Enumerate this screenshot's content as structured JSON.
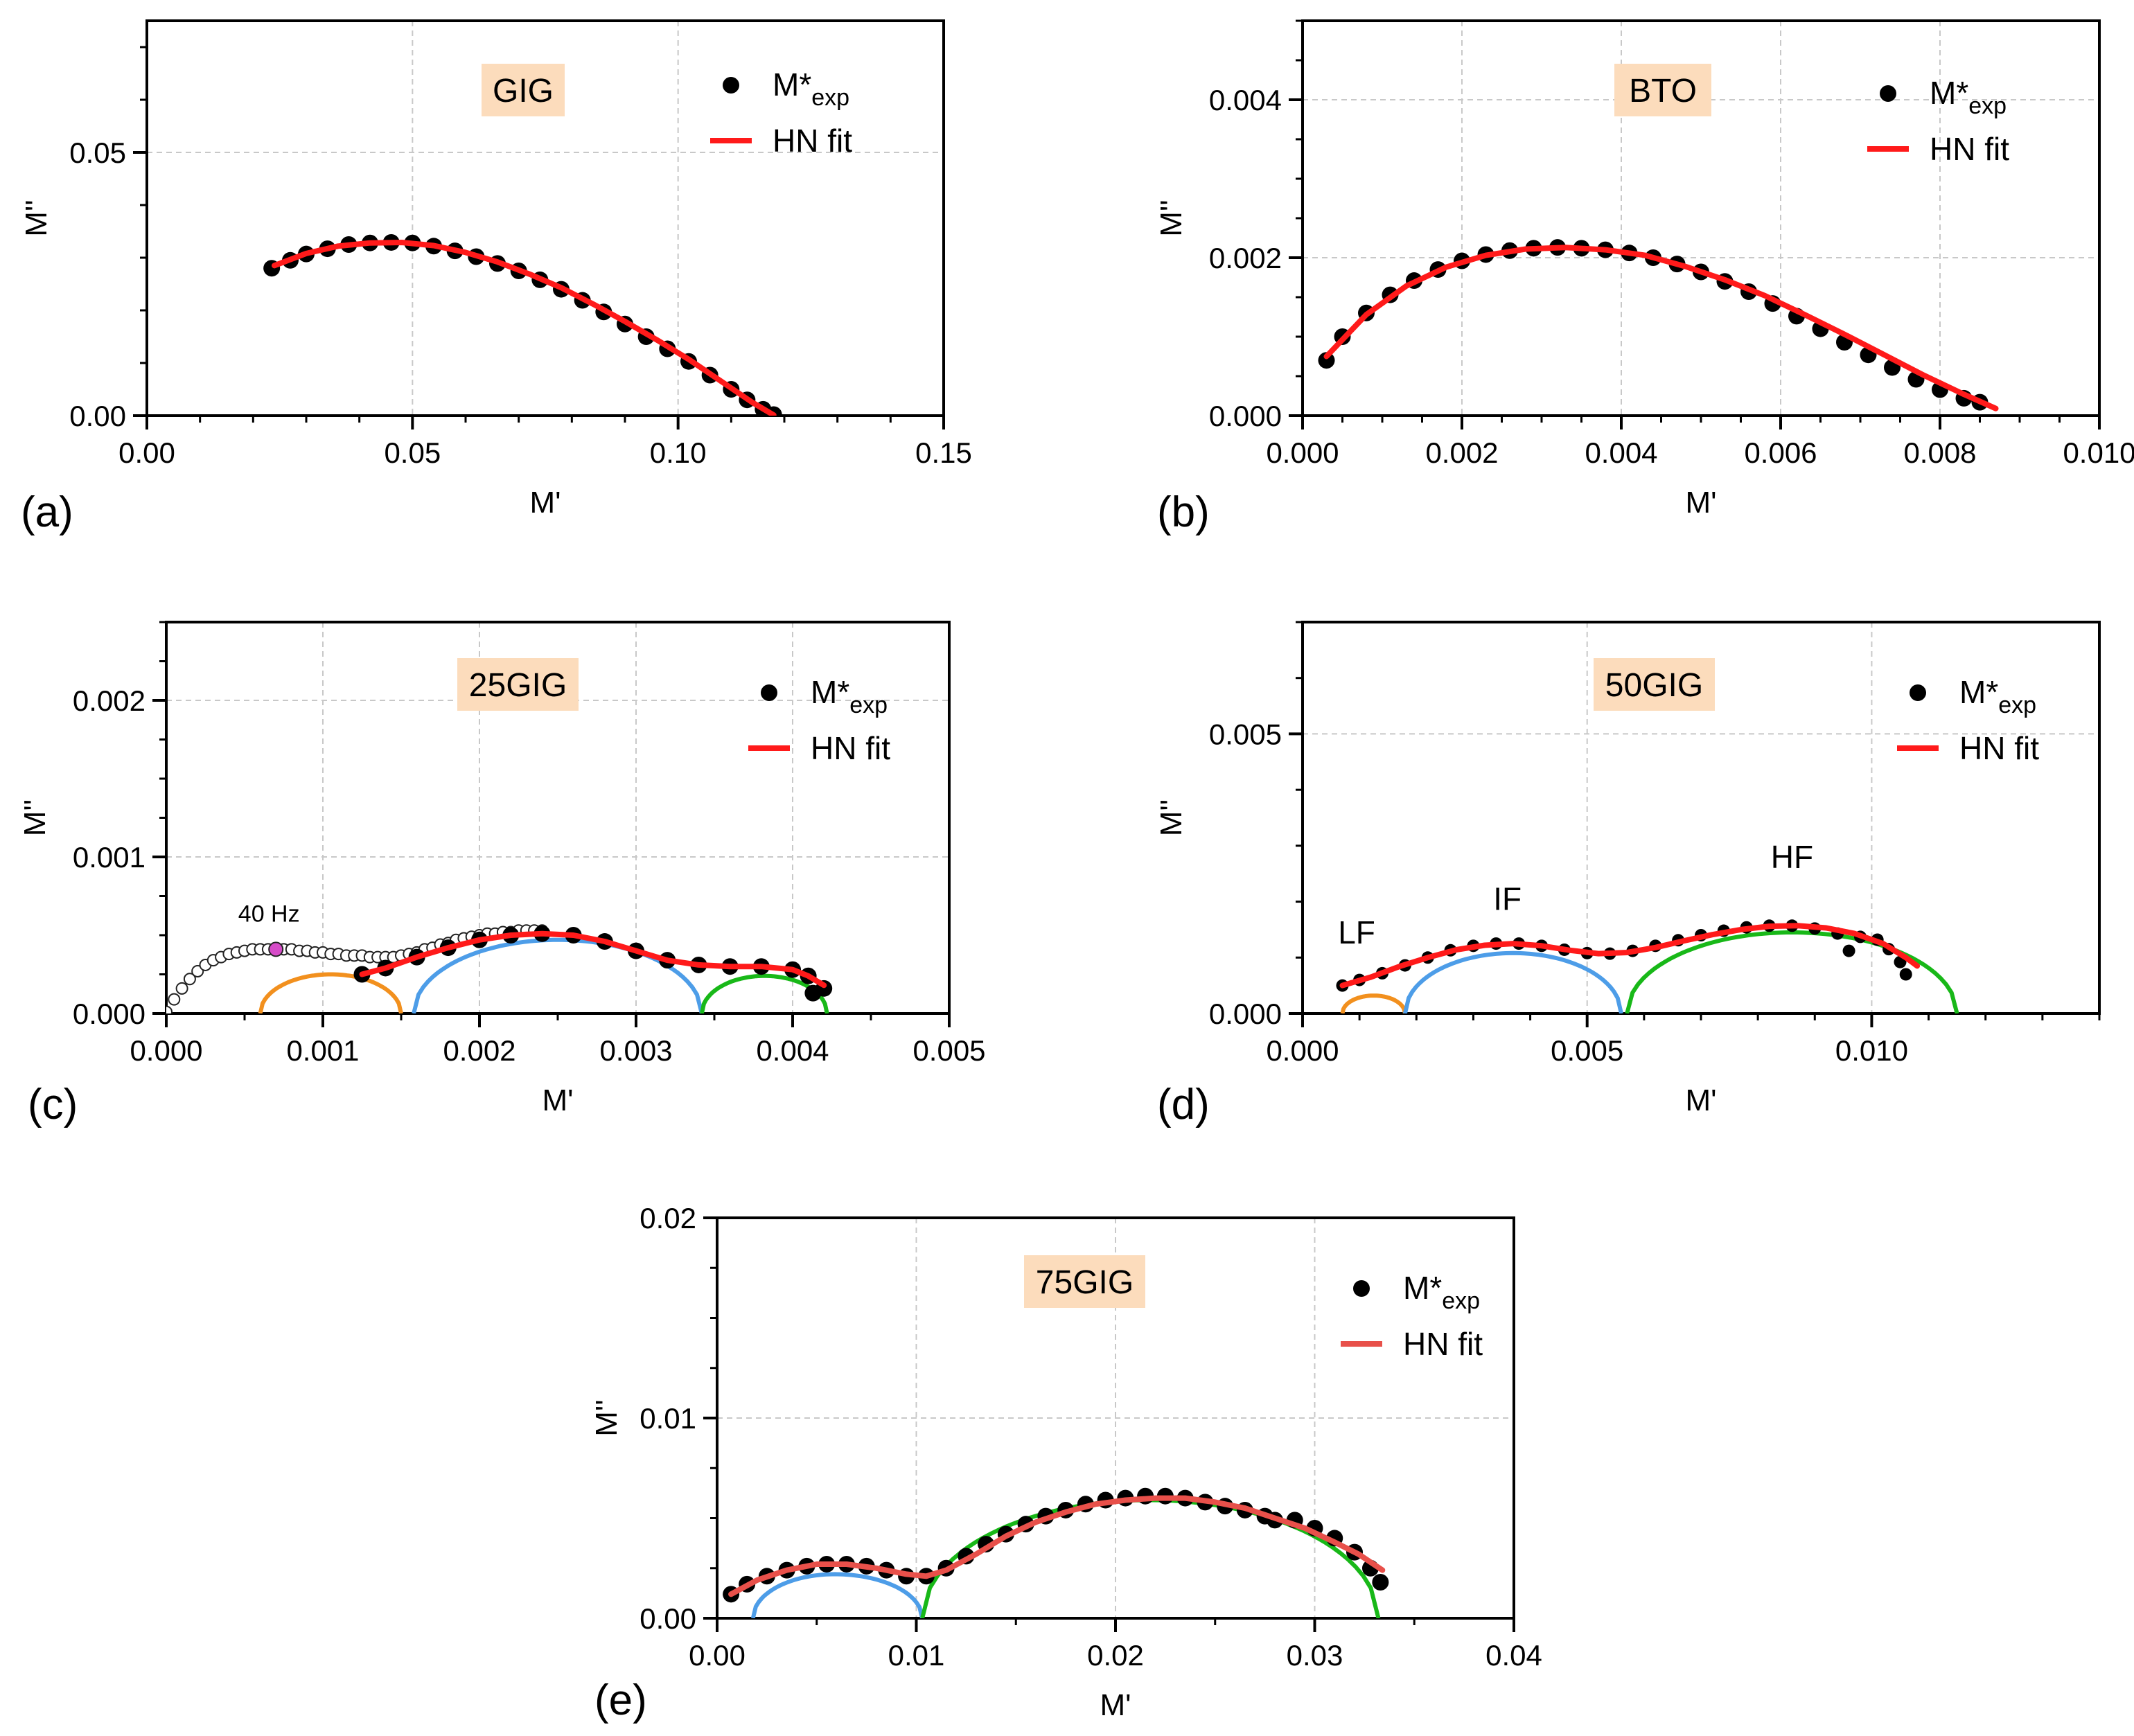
{
  "figure": {
    "legend": {
      "exp_label": "M*",
      "exp_sub": "exp",
      "fit_label": "HN fit"
    },
    "colors": {
      "exp": "#000000",
      "fit": "#ff1a1a",
      "fit_e": "#e8504a",
      "lf": "#f2901e",
      "mf": "#4d9de8",
      "hf": "#18b818",
      "highlight": "#d64bc8",
      "sample_bg": "#fcdcbc",
      "grid": "#c8c8c8"
    }
  },
  "chart_data": [
    {
      "id": "a",
      "type": "scatter",
      "panel_label": "(a)",
      "sample": "GIG",
      "xlabel": "M'",
      "ylabel": "M''",
      "xlim": [
        0,
        0.15
      ],
      "ylim": [
        0,
        0.075
      ],
      "xticks": [
        0,
        0.05,
        0.1,
        0.15
      ],
      "xtick_labels": [
        "0.00",
        "0.05",
        "0.10",
        "0.15"
      ],
      "yticks": [
        0,
        0.05
      ],
      "ytick_labels": [
        "0.00",
        "0.05"
      ],
      "xminor": 0.01,
      "yminor": 0.01,
      "exp": {
        "x": [
          0.0235,
          0.027,
          0.03,
          0.034,
          0.038,
          0.042,
          0.046,
          0.05,
          0.054,
          0.058,
          0.062,
          0.066,
          0.07,
          0.074,
          0.078,
          0.082,
          0.086,
          0.09,
          0.094,
          0.098,
          0.102,
          0.106,
          0.11,
          0.113,
          0.116,
          0.118
        ],
        "y": [
          0.028,
          0.0295,
          0.0307,
          0.0317,
          0.0325,
          0.0328,
          0.0329,
          0.0328,
          0.0322,
          0.0313,
          0.0302,
          0.0289,
          0.0275,
          0.0258,
          0.024,
          0.0219,
          0.0197,
          0.0174,
          0.015,
          0.0127,
          0.0103,
          0.0077,
          0.005,
          0.003,
          0.0012,
          0.0002
        ]
      },
      "fit": {
        "x": [
          0.024,
          0.03,
          0.036,
          0.042,
          0.048,
          0.054,
          0.06,
          0.066,
          0.072,
          0.078,
          0.084,
          0.09,
          0.096,
          0.102,
          0.108,
          0.114,
          0.118
        ],
        "y": [
          0.0285,
          0.0308,
          0.0322,
          0.0328,
          0.0329,
          0.0323,
          0.031,
          0.0292,
          0.0269,
          0.0243,
          0.0212,
          0.0179,
          0.0144,
          0.0107,
          0.0066,
          0.0025,
          0.0001
        ]
      }
    },
    {
      "id": "b",
      "type": "scatter",
      "panel_label": "(b)",
      "sample": "BTO",
      "xlabel": "M'",
      "ylabel": "M''",
      "xlim": [
        0,
        0.01
      ],
      "ylim": [
        0,
        0.005
      ],
      "xticks": [
        0,
        0.002,
        0.004,
        0.006,
        0.008,
        0.01
      ],
      "xtick_labels": [
        "0.000",
        "0.002",
        "0.004",
        "0.006",
        "0.008",
        "0.010"
      ],
      "yticks": [
        0,
        0.002,
        0.004
      ],
      "ytick_labels": [
        "0.000",
        "0.002",
        "0.004"
      ],
      "xminor": 0.0005,
      "yminor": 0.0005,
      "exp": {
        "x": [
          0.0003,
          0.0005,
          0.0008,
          0.0011,
          0.0014,
          0.0017,
          0.002,
          0.0023,
          0.0026,
          0.0029,
          0.0032,
          0.0035,
          0.0038,
          0.0041,
          0.0044,
          0.0047,
          0.005,
          0.0053,
          0.0056,
          0.0059,
          0.0062,
          0.0065,
          0.0068,
          0.0071,
          0.0074,
          0.0077,
          0.008,
          0.0083,
          0.0085
        ],
        "y": [
          0.0007,
          0.001,
          0.0013,
          0.00153,
          0.00171,
          0.00185,
          0.00196,
          0.00204,
          0.00209,
          0.00212,
          0.00213,
          0.00212,
          0.0021,
          0.00206,
          0.002,
          0.00192,
          0.00182,
          0.0017,
          0.00157,
          0.00142,
          0.00126,
          0.0011,
          0.00093,
          0.00077,
          0.00061,
          0.00046,
          0.00033,
          0.00022,
          0.00017
        ]
      },
      "fit": {
        "x": [
          0.0003,
          0.0008,
          0.0013,
          0.0018,
          0.0023,
          0.0028,
          0.0033,
          0.0038,
          0.0043,
          0.0048,
          0.0053,
          0.0058,
          0.0063,
          0.0068,
          0.0073,
          0.0078,
          0.0083,
          0.0087
        ],
        "y": [
          0.00075,
          0.00128,
          0.00164,
          0.00188,
          0.00203,
          0.00211,
          0.00213,
          0.0021,
          0.00203,
          0.00189,
          0.00172,
          0.00152,
          0.00128,
          0.00103,
          0.00077,
          0.00051,
          0.00027,
          9e-05
        ]
      }
    },
    {
      "id": "c",
      "type": "scatter",
      "panel_label": "(c)",
      "sample": "25GIG",
      "xlabel": "M'",
      "ylabel": "M''",
      "xlim": [
        0,
        0.005
      ],
      "ylim": [
        0,
        0.0025
      ],
      "xticks": [
        0,
        0.001,
        0.002,
        0.003,
        0.004,
        0.005
      ],
      "xtick_labels": [
        "0.000",
        "0.001",
        "0.002",
        "0.003",
        "0.004",
        "0.005"
      ],
      "yticks": [
        0,
        0.001,
        0.002
      ],
      "ytick_labels": [
        "0.000",
        "0.001",
        "0.002"
      ],
      "xminor": 0.0005,
      "yminor": 0.00025,
      "exp": {
        "x": [
          0.00125,
          0.0014,
          0.0016,
          0.0018,
          0.002,
          0.0022,
          0.0024,
          0.0026,
          0.0028,
          0.003,
          0.0032,
          0.0034,
          0.0036,
          0.0038,
          0.004,
          0.0041,
          0.00413,
          0.0042
        ],
        "y": [
          0.00025,
          0.00029,
          0.00036,
          0.00042,
          0.00047,
          0.0005,
          0.00051,
          0.0005,
          0.00046,
          0.0004,
          0.00034,
          0.00031,
          0.0003,
          0.0003,
          0.00028,
          0.00024,
          0.00013,
          0.00016
        ]
      },
      "fit": {
        "x": [
          0.00125,
          0.0014,
          0.0016,
          0.0018,
          0.002,
          0.0022,
          0.0024,
          0.0026,
          0.0028,
          0.003,
          0.0032,
          0.0034,
          0.0036,
          0.0038,
          0.004,
          0.0041,
          0.0042
        ],
        "y": [
          0.00025,
          0.00029,
          0.00036,
          0.00042,
          0.00047,
          0.0005,
          0.00051,
          0.0005,
          0.00046,
          0.0004,
          0.00034,
          0.00031,
          0.0003,
          0.0003,
          0.00028,
          0.00024,
          0.00018
        ]
      },
      "open_points": {
        "x": [
          0.0,
          5e-05,
          0.0001,
          0.00015,
          0.0002,
          0.00025,
          0.0003,
          0.00035,
          0.0004,
          0.00045,
          0.0005,
          0.00055,
          0.0006,
          0.00065,
          0.00075,
          0.0008,
          0.00085,
          0.0009,
          0.00095,
          0.001,
          0.00105,
          0.0011,
          0.00115,
          0.0012,
          0.00125,
          0.0013,
          0.00135,
          0.0014,
          0.00145,
          0.0015,
          0.00155,
          0.0016,
          0.00165,
          0.0017,
          0.00175,
          0.0018,
          0.00185,
          0.0019,
          0.00195,
          0.002,
          0.00205,
          0.0021,
          0.00215,
          0.0022,
          0.00225,
          0.0023,
          0.00235,
          0.0024
        ],
        "y": [
          1e-05,
          9e-05,
          0.00016,
          0.00022,
          0.00027,
          0.00031,
          0.00034,
          0.00036,
          0.00038,
          0.00039,
          0.0004,
          0.00041,
          0.00041,
          0.00041,
          0.00041,
          0.00041,
          0.0004,
          0.0004,
          0.00039,
          0.00039,
          0.00038,
          0.00038,
          0.00037,
          0.00037,
          0.00037,
          0.00036,
          0.00036,
          0.00036,
          0.00036,
          0.00037,
          0.00038,
          0.00039,
          0.00041,
          0.00042,
          0.00044,
          0.00045,
          0.00047,
          0.00048,
          0.00049,
          0.0005,
          0.00051,
          0.00051,
          0.00052,
          0.00052,
          0.00053,
          0.00053,
          0.00053,
          0.00053
        ]
      },
      "highlight": {
        "x": 0.0007,
        "y": 0.00041,
        "label": "40 Hz"
      },
      "arcs": [
        {
          "name": "LF",
          "color_key": "lf",
          "center": 0.00105,
          "radius": 0.00045,
          "from": 0.0017,
          "to": 0.0025
        },
        {
          "name": "IF",
          "color_key": "mf",
          "center": 0.0025,
          "radius": 0.00092,
          "from": 0.0014,
          "to": 0.0025
        },
        {
          "name": "HF",
          "color_key": "hf",
          "center": 0.00382,
          "radius": 0.0004,
          "from": 0.0017,
          "to": 0.0025
        }
      ],
      "arc_heights": [
        0.00025,
        0.00047,
        0.00024
      ]
    },
    {
      "id": "d",
      "type": "scatter",
      "panel_label": "(d)",
      "sample": "50GIG",
      "xlabel": "M'",
      "ylabel": "M''",
      "xlim": [
        0,
        0.014
      ],
      "ylim": [
        0,
        0.007
      ],
      "xticks": [
        0,
        0.005,
        0.01
      ],
      "xtick_labels": [
        "0.000",
        "0.005",
        "0.010"
      ],
      "yticks": [
        0,
        0.005
      ],
      "ytick_labels": [
        "0.000",
        "0.005"
      ],
      "xminor": 0.001,
      "yminor": 0.001,
      "exp": {
        "x": [
          0.0007,
          0.001,
          0.0014,
          0.0018,
          0.0022,
          0.0026,
          0.003,
          0.0034,
          0.0038,
          0.0042,
          0.0046,
          0.005,
          0.0054,
          0.0058,
          0.0062,
          0.0066,
          0.007,
          0.0074,
          0.0078,
          0.0082,
          0.0086,
          0.009,
          0.0094,
          0.0096,
          0.0098,
          0.0101,
          0.0103,
          0.0105,
          0.0106
        ],
        "y": [
          0.0005,
          0.0006,
          0.00072,
          0.00086,
          0.001,
          0.00113,
          0.00121,
          0.00125,
          0.00125,
          0.00121,
          0.00114,
          0.00108,
          0.00107,
          0.00112,
          0.00121,
          0.00131,
          0.0014,
          0.00148,
          0.00154,
          0.00157,
          0.00157,
          0.00152,
          0.00143,
          0.00112,
          0.00137,
          0.00132,
          0.00115,
          0.00092,
          0.0007
        ]
      },
      "fit": {
        "x": [
          0.0007,
          0.0012,
          0.0017,
          0.0022,
          0.0027,
          0.0032,
          0.0037,
          0.0042,
          0.0047,
          0.0052,
          0.0057,
          0.0062,
          0.0067,
          0.0072,
          0.0077,
          0.0082,
          0.0087,
          0.0092,
          0.0097,
          0.0102,
          0.0106,
          0.0108
        ],
        "y": [
          0.0005,
          0.00065,
          0.00084,
          0.001,
          0.00114,
          0.00122,
          0.00125,
          0.00121,
          0.00113,
          0.00107,
          0.00109,
          0.00118,
          0.0013,
          0.00141,
          0.0015,
          0.00156,
          0.00157,
          0.00153,
          0.00143,
          0.00125,
          0.001,
          0.00085
        ]
      },
      "arcs": [
        {
          "name": "LF",
          "color_key": "lf",
          "center": 0.00125,
          "radius": 0.00055,
          "from": 0.0,
          "to": 0.0
        },
        {
          "name": "IF",
          "color_key": "mf",
          "center": 0.0037,
          "radius": 0.0019,
          "from": 0.0,
          "to": 0.0
        },
        {
          "name": "HF",
          "color_key": "hf",
          "center": 0.0086,
          "radius": 0.0029,
          "from": 0.0,
          "to": 0.0
        }
      ],
      "arc_heights": [
        0.00032,
        0.00108,
        0.00145
      ],
      "annotations": [
        {
          "text": "LF",
          "x": 0.00095,
          "y": 0.00125
        },
        {
          "text": "IF",
          "x": 0.0036,
          "y": 0.00185
        },
        {
          "text": "HF",
          "x": 0.0086,
          "y": 0.0026
        }
      ]
    },
    {
      "id": "e",
      "type": "scatter",
      "panel_label": "(e)",
      "sample": "75GIG",
      "xlabel": "M'",
      "ylabel": "M''",
      "xlim": [
        0,
        0.04
      ],
      "ylim": [
        0,
        0.02
      ],
      "xticks": [
        0,
        0.01,
        0.02,
        0.03,
        0.04
      ],
      "xtick_labels": [
        "0.00",
        "0.01",
        "0.02",
        "0.03",
        "0.04"
      ],
      "yticks": [
        0,
        0.01,
        0.02
      ],
      "ytick_labels": [
        "0.00",
        "0.01",
        "0.02"
      ],
      "xminor": 0.005,
      "yminor": 0.0025,
      "exp": {
        "x": [
          0.0007,
          0.0015,
          0.0025,
          0.0035,
          0.0045,
          0.0055,
          0.0065,
          0.0075,
          0.0085,
          0.0095,
          0.0105,
          0.0115,
          0.0125,
          0.0135,
          0.0145,
          0.0155,
          0.0165,
          0.0175,
          0.0185,
          0.0195,
          0.0205,
          0.0215,
          0.0225,
          0.0235,
          0.0245,
          0.0255,
          0.0265,
          0.0275,
          0.028,
          0.029,
          0.03,
          0.031,
          0.032,
          0.0328,
          0.0333
        ],
        "y": [
          0.0012,
          0.0017,
          0.0021,
          0.0024,
          0.0026,
          0.0027,
          0.0027,
          0.0026,
          0.0024,
          0.0021,
          0.0021,
          0.0025,
          0.0031,
          0.0037,
          0.0042,
          0.0047,
          0.0051,
          0.0054,
          0.0057,
          0.0059,
          0.006,
          0.0061,
          0.0061,
          0.006,
          0.0058,
          0.0056,
          0.0054,
          0.0051,
          0.0049,
          0.0049,
          0.0045,
          0.004,
          0.0033,
          0.0025,
          0.0018
        ]
      },
      "fit": {
        "x": [
          0.0007,
          0.002,
          0.0035,
          0.005,
          0.0065,
          0.008,
          0.0095,
          0.0105,
          0.0115,
          0.013,
          0.0145,
          0.016,
          0.0175,
          0.019,
          0.0205,
          0.022,
          0.0235,
          0.025,
          0.0265,
          0.028,
          0.0295,
          0.031,
          0.0322,
          0.0334
        ],
        "y": [
          0.0012,
          0.0019,
          0.0024,
          0.0027,
          0.0027,
          0.0025,
          0.0022,
          0.0021,
          0.0024,
          0.0032,
          0.0041,
          0.0048,
          0.0053,
          0.0057,
          0.0059,
          0.006,
          0.006,
          0.0058,
          0.0055,
          0.005,
          0.0045,
          0.0038,
          0.0032,
          0.0024
        ]
      },
      "arcs": [
        {
          "name": "IF",
          "color_key": "mf",
          "center": 0.0059,
          "radius": 0.0044,
          "from": 0.0,
          "to": 0.0
        },
        {
          "name": "HF",
          "color_key": "hf",
          "center": 0.0217,
          "radius": 0.0115,
          "from": 0.0,
          "to": 0.0
        }
      ],
      "arc_heights": [
        0.0022,
        0.0059
      ],
      "arc_start": [
        0.0018,
        0.0103
      ],
      "arc_end": [
        0.0103,
        0.0332
      ]
    }
  ]
}
